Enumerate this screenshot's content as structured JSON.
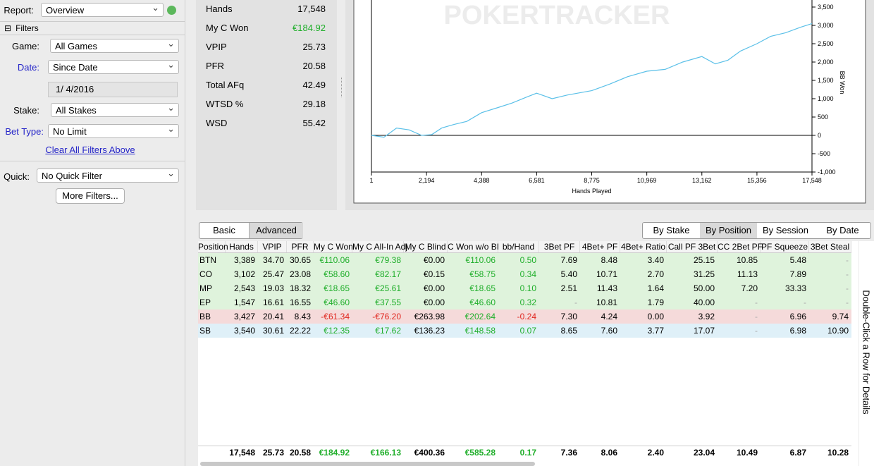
{
  "report": {
    "label": "Report:",
    "value": "Overview"
  },
  "filters": {
    "title": "Filters",
    "game": {
      "label": "Game:",
      "value": "All Games"
    },
    "date": {
      "label": "Date:",
      "value": "Since Date"
    },
    "date_value": "1/  4/2016",
    "stake": {
      "label": "Stake:",
      "value": "All Stakes"
    },
    "bet_type": {
      "label": "Bet Type:",
      "value": "No Limit"
    },
    "clear": "Clear All Filters Above",
    "quick": {
      "label": "Quick:",
      "value": "No Quick Filter"
    },
    "more": "More Filters..."
  },
  "stats": [
    {
      "label": "Hands",
      "value": "17,548"
    },
    {
      "label": "My C Won",
      "value": "€184.92"
    },
    {
      "label": "VPIP",
      "value": "25.73"
    },
    {
      "label": "PFR",
      "value": "20.58"
    },
    {
      "label": "Total AFq",
      "value": "42.49"
    },
    {
      "label": "WTSD %",
      "value": "29.18"
    },
    {
      "label": "WSD",
      "value": "55.42"
    }
  ],
  "graph": {
    "type": "line",
    "watermark": "POKERTRACKER",
    "x_label": "Hands Played",
    "y_label": "BB Won",
    "color": "#5bc0e8",
    "xlim": [
      1,
      17548
    ],
    "ylim": [
      -1000,
      3692
    ],
    "xticks": [
      1,
      {
        "value": 2194,
        "label": "2,194"
      },
      {
        "value": 4388,
        "label": "4,388"
      },
      {
        "value": 6581,
        "label": "6,581"
      },
      {
        "value": 8775,
        "label": "8,775"
      },
      {
        "value": 10969,
        "label": "10,969"
      },
      {
        "value": 13162,
        "label": "13,162"
      },
      {
        "value": 15356,
        "label": "15,356"
      },
      {
        "value": 17548,
        "label": "17,548"
      }
    ],
    "yticks": [
      {
        "value": -1000,
        "label": "-1,000"
      },
      -500,
      0,
      500,
      {
        "value": 1000,
        "label": "1,000"
      },
      {
        "value": 1500,
        "label": "1,500"
      },
      {
        "value": 2000,
        "label": "2,000"
      },
      {
        "value": 2500,
        "label": "2,500"
      },
      {
        "value": 3000,
        "label": "3,000"
      },
      {
        "value": 3500,
        "label": "3,500"
      }
    ],
    "x": [
      1,
      500,
      1000,
      1500,
      2000,
      2400,
      2800,
      3300,
      3800,
      4388,
      5000,
      5600,
      6200,
      6581,
      7200,
      7800,
      8775,
      9500,
      10200,
      10969,
      11700,
      12400,
      13162,
      13700,
      14200,
      14700,
      15356,
      15900,
      16500,
      17100,
      17548
    ],
    "values": [
      0,
      -50,
      200,
      150,
      0,
      20,
      200,
      300,
      380,
      620,
      750,
      880,
      1050,
      1150,
      1000,
      1100,
      1220,
      1400,
      1600,
      1750,
      1800,
      2000,
      2150,
      1950,
      2050,
      2300,
      2500,
      2700,
      2800,
      2950,
      3050
    ]
  },
  "tabs": [
    "Basic",
    "Advanced"
  ],
  "views": [
    "By Stake",
    "By Position",
    "By Session",
    "By Date"
  ],
  "table": {
    "columns": [
      "Position",
      "Hands",
      "VPIP",
      "PFR",
      "My C Won",
      "My C All-In Adj",
      "My C Blind",
      "C Won w/o BI",
      "bb/Hand",
      "3Bet PF",
      "4Bet+ PF",
      "4Bet+ Ratio",
      "Call PF 3Bet",
      "CC 2Bet PF",
      "PF Squeeze",
      "3Bet Steal"
    ],
    "rows": [
      [
        "BTN",
        "3,389",
        "34.70",
        "30.65",
        "€110.06",
        "€79.38",
        "€0.00",
        "€110.06",
        "0.50",
        "7.69",
        "8.48",
        "3.40",
        "25.15",
        "10.85",
        "5.48",
        "-"
      ],
      [
        "CO",
        "3,102",
        "25.47",
        "23.08",
        "€58.60",
        "€82.17",
        "€0.15",
        "€58.75",
        "0.34",
        "5.40",
        "10.71",
        "2.70",
        "31.25",
        "11.13",
        "7.89",
        "-"
      ],
      [
        "MP",
        "2,543",
        "19.03",
        "18.32",
        "€18.65",
        "€25.61",
        "€0.00",
        "€18.65",
        "0.10",
        "2.51",
        "11.43",
        "1.64",
        "50.00",
        "7.20",
        "33.33",
        "-"
      ],
      [
        "EP",
        "1,547",
        "16.61",
        "16.55",
        "€46.60",
        "€37.55",
        "€0.00",
        "€46.60",
        "0.32",
        "-",
        "10.81",
        "1.79",
        "40.00",
        "-",
        "-",
        "-"
      ],
      [
        "BB",
        "3,427",
        "20.41",
        "8.43",
        "-€61.34",
        "-€76.20",
        "€263.98",
        "€202.64",
        "-0.24",
        "7.30",
        "4.24",
        "0.00",
        "3.92",
        "-",
        "6.96",
        "9.74"
      ],
      [
        "SB",
        "3,540",
        "30.61",
        "22.22",
        "€12.35",
        "€17.62",
        "€136.23",
        "€148.58",
        "0.07",
        "8.65",
        "7.60",
        "3.77",
        "17.07",
        "-",
        "6.98",
        "10.90"
      ]
    ],
    "totals": [
      "17,548",
      "25.73",
      "20.58",
      "€184.92",
      "€166.13",
      "€400.36",
      "€585.28",
      "0.17",
      "7.36",
      "8.06",
      "2.40",
      "23.04",
      "10.49",
      "6.87",
      "10.28"
    ]
  },
  "hint": "Double-Click a Row for Details"
}
